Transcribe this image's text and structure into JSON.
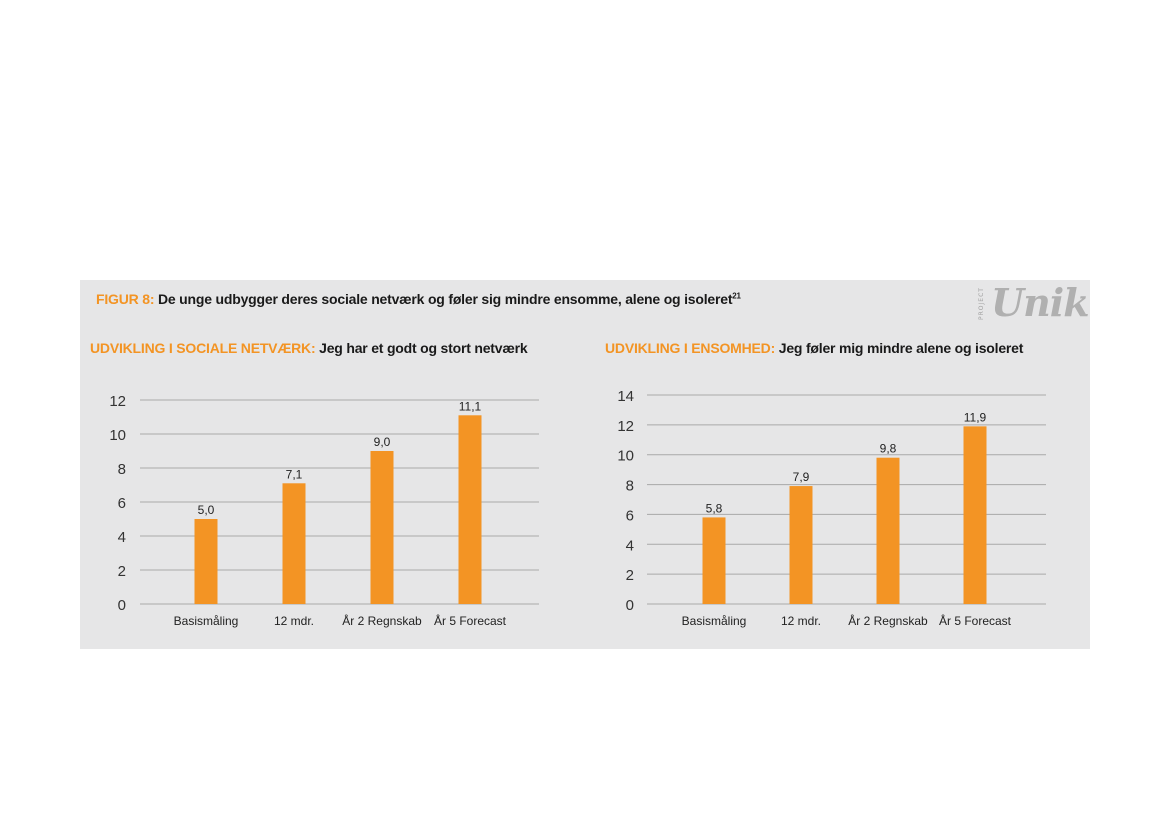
{
  "figure": {
    "label": "FIGUR 8:",
    "title": "De unge udbygger deres sociale netværk og føler sig mindre ensomme, alene og isoleret",
    "footnote": "21"
  },
  "logo": {
    "project": "PROJECT",
    "name": "Unik"
  },
  "colors": {
    "bar": "#f39424",
    "grid": "#a9a9a9",
    "panel": "#e6e6e7",
    "accent": "#f39424"
  },
  "chart_data": [
    {
      "type": "bar",
      "label": "UDVIKLING I SOCIALE NETVÆRK:",
      "title": "Jeg har et godt og stort netværk",
      "categories": [
        "Basismåling",
        "12 mdr.",
        "År 2 Regnskab",
        "År 5 Forecast"
      ],
      "values": [
        5.0,
        7.1,
        9.0,
        11.1
      ],
      "data_labels": [
        "5,0",
        "7,1",
        "9,0",
        "11,1"
      ],
      "yticks": [
        0,
        2,
        4,
        6,
        8,
        10,
        12
      ],
      "ylim": [
        0,
        12
      ],
      "grid": true
    },
    {
      "type": "bar",
      "label": "UDVIKLING I ENSOMHED:",
      "title": "Jeg føler mig mindre alene og isoleret",
      "categories": [
        "Basismåling",
        "12 mdr.",
        "År 2 Regnskab",
        "År 5 Forecast"
      ],
      "values": [
        5.8,
        7.9,
        9.8,
        11.9
      ],
      "data_labels": [
        "5,8",
        "7,9",
        "9,8",
        "11,9"
      ],
      "yticks": [
        0,
        2,
        4,
        6,
        8,
        10,
        12,
        14
      ],
      "ylim": [
        0,
        14
      ],
      "grid": true
    }
  ]
}
